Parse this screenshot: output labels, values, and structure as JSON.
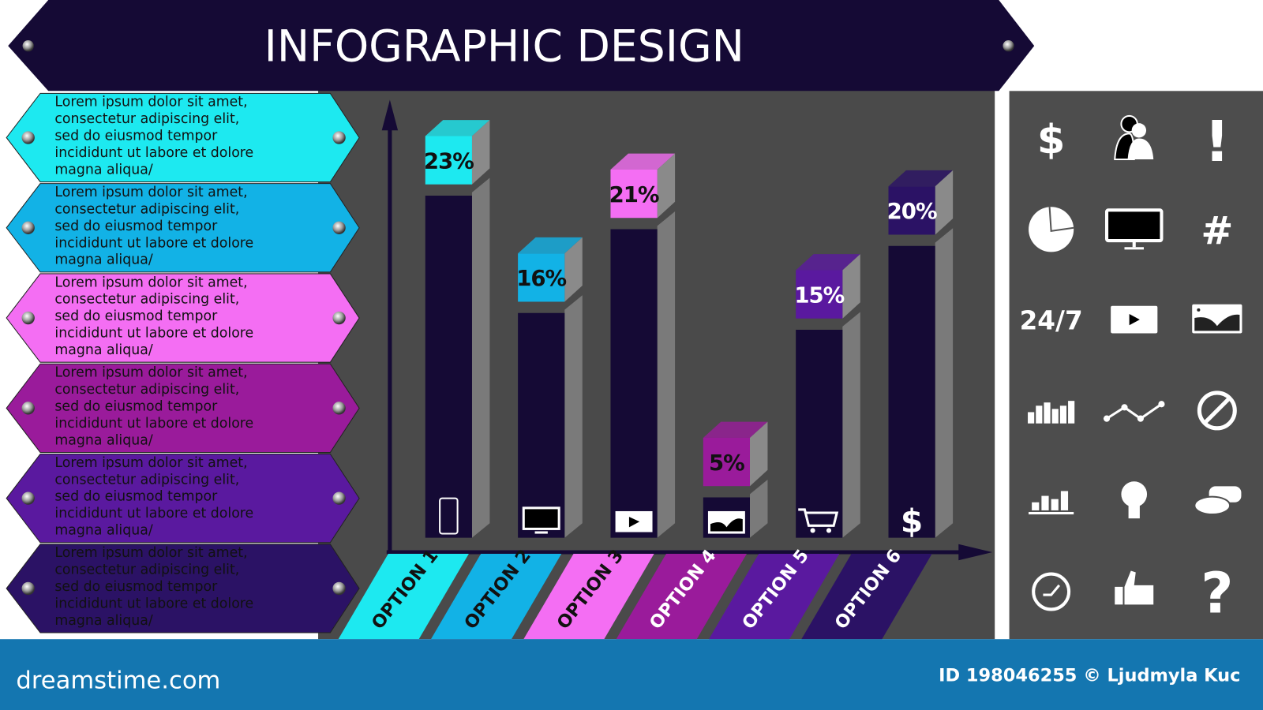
{
  "header": {
    "title": "INFOGRAPHIC DESIGN"
  },
  "ribbons": [
    {
      "color": "#1de9f0",
      "lines": [
        "Lorem ipsum dolor sit amet,",
        "consectetur adipiscing elit,",
        "sed do eiusmod tempor",
        "incididunt ut labore et dolore",
        "magna aliqua/"
      ]
    },
    {
      "color": "#12b2e6",
      "lines": [
        "Lorem ipsum dolor sit amet,",
        "consectetur adipiscing elit,",
        "sed do eiusmod tempor",
        "incididunt ut labore et dolore",
        "magna aliqua/"
      ]
    },
    {
      "color": "#f46ef3",
      "lines": [
        "Lorem ipsum dolor sit amet,",
        "consectetur adipiscing elit,",
        "sed do eiusmod tempor",
        "incididunt ut labore et dolore",
        "magna aliqua/"
      ]
    },
    {
      "color": "#9a1b9b",
      "lines": [
        "Lorem ipsum dolor sit amet,",
        "consectetur adipiscing elit,",
        "sed do eiusmod tempor",
        "incididunt ut labore et dolore",
        "magna aliqua/"
      ]
    },
    {
      "color": "#5a199f",
      "lines": [
        "Lorem ipsum dolor sit amet,",
        "consectetur adipiscing elit,",
        "sed do eiusmod tempor",
        "incididunt ut labore et dolore",
        "magna aliqua/"
      ]
    },
    {
      "color": "#2b1265",
      "lines": [
        "Lorem ipsum dolor sit amet,",
        "consectetur adipiscing elit,",
        "sed do eiusmod tempor",
        "incididunt ut labore et dolore",
        "magna aliqua/"
      ]
    }
  ],
  "chart_data": {
    "type": "bar",
    "categories": [
      "OPTION 1",
      "OPTION 2",
      "OPTION 3",
      "OPTION 4",
      "OPTION 5",
      "OPTION 6"
    ],
    "values": [
      23,
      16,
      21,
      5,
      15,
      20
    ],
    "labels": [
      "23%",
      "16%",
      "21%",
      "5%",
      "15%",
      "20%"
    ],
    "colors": [
      "#1de9f0",
      "#12b2e6",
      "#f46ef3",
      "#9a1b9b",
      "#5a199f",
      "#2b1265"
    ],
    "bar_icons": [
      "smartphone-icon",
      "monitor-icon",
      "play-icon",
      "image-icon",
      "cart-icon",
      "dollar-icon"
    ],
    "ylim": [
      0,
      25
    ],
    "grid": false,
    "body_color": "#150a35"
  },
  "icon_panel": {
    "icons": [
      "dollar-icon",
      "user-icon",
      "exclamation-icon",
      "pie-chart-icon",
      "monitor-icon",
      "hashtag-icon",
      "24-7-icon",
      "play-icon",
      "image-icon",
      "bar-chart-icon",
      "line-chart-icon",
      "forbidden-icon",
      "column-chart-icon",
      "lightbulb-icon",
      "chat-icon",
      "clock-icon",
      "thumbs-up-icon",
      "question-icon"
    ],
    "dollar": "$",
    "exclamation": "!",
    "hashtag": "#",
    "text_24_7": "24/7",
    "question": "?"
  },
  "footer": {
    "brand": "dreamstime.com",
    "credit": "ID 198046255 © Ljudmyla Kuc",
    "color": "#1476b0"
  }
}
